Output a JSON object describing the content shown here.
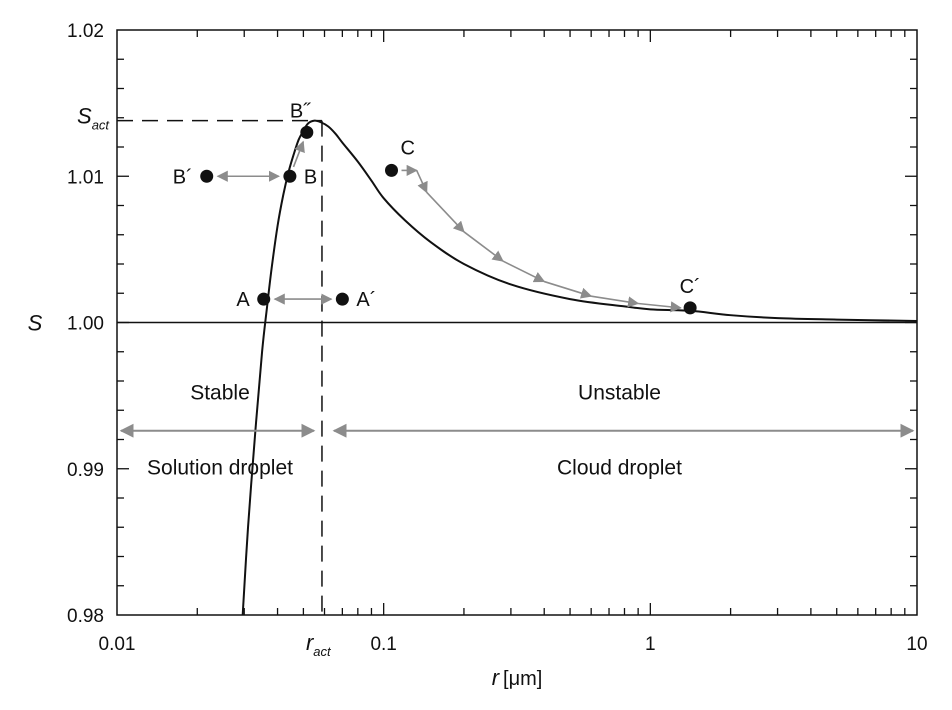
{
  "chart_data": {
    "type": "line",
    "title": "",
    "xlabel": {
      "symbol": "r",
      "unit": "[μm]"
    },
    "ylabel": "S",
    "x_scale": "log",
    "xlim": [
      0.01,
      10
    ],
    "ylim": [
      0.98,
      1.02
    ],
    "x_ticks": [
      {
        "value": 0.01,
        "label": "0.01"
      },
      {
        "value": 0.1,
        "label": "0.1"
      },
      {
        "value": 1,
        "label": "1"
      },
      {
        "value": 10,
        "label": "10"
      }
    ],
    "y_ticks": [
      {
        "value": 0.98,
        "label": "0.98"
      },
      {
        "value": 0.99,
        "label": "0.99"
      },
      {
        "value": 1.0,
        "label": "1.00"
      },
      {
        "value": 1.01,
        "label": "1.01"
      },
      {
        "value": 1.02,
        "label": "1.02"
      }
    ],
    "grid": false,
    "series": [
      {
        "name": "",
        "x": [
          0.0296,
          0.031,
          0.033,
          0.035,
          0.0365,
          0.038,
          0.04,
          0.042,
          0.044,
          0.046,
          0.048,
          0.05,
          0.052,
          0.055,
          0.058,
          0.062,
          0.066,
          0.07,
          0.08,
          0.09,
          0.1,
          0.12,
          0.15,
          0.2,
          0.3,
          0.5,
          0.8,
          1.0,
          1.41,
          2,
          3,
          5,
          10
        ],
        "y": [
          0.98,
          0.986,
          0.9925,
          0.998,
          1.001,
          1.0037,
          1.0066,
          1.0087,
          1.0103,
          1.0115,
          1.0125,
          1.0131,
          1.0136,
          1.0138,
          1.0137,
          1.0134,
          1.0129,
          1.0123,
          1.011,
          1.0097,
          1.0085,
          1.007,
          1.0055,
          1.004,
          1.0026,
          1.0016,
          1.0011,
          1.0009,
          1.0008,
          1.0005,
          1.0003,
          1.0002,
          1.0001
        ]
      }
    ],
    "reference_line": {
      "y": 1.0
    },
    "activation": {
      "x": 0.0587,
      "y": 1.0138,
      "x_label": {
        "symbol": "r",
        "sub": "act"
      },
      "y_label": {
        "symbol": "S",
        "sub": "act"
      }
    },
    "points": [
      {
        "id": "A",
        "label": "A",
        "x": 0.0355,
        "y": 1.0016,
        "label_side": "left"
      },
      {
        "id": "A_prime",
        "label": "A´",
        "x": 0.07,
        "y": 1.0016,
        "label_side": "right"
      },
      {
        "id": "B",
        "label": "B",
        "x": 0.0445,
        "y": 1.01,
        "label_side": "right"
      },
      {
        "id": "B_prime",
        "label": "B´",
        "x": 0.0217,
        "y": 1.01,
        "label_side": "left"
      },
      {
        "id": "B_dprime",
        "label": "B˝",
        "x": 0.0515,
        "y": 1.013,
        "label_side": "above"
      },
      {
        "id": "C",
        "label": "C",
        "x": 0.107,
        "y": 1.0104,
        "label_side": "above-right"
      },
      {
        "id": "C_prime",
        "label": "C´",
        "x": 1.41,
        "y": 1.001,
        "label_side": "above"
      }
    ],
    "arrows": {
      "A_to_A_prime": {
        "from": [
          0.0355,
          1.0016
        ],
        "to": [
          0.07,
          1.0016
        ],
        "both_ends": true
      },
      "B_to_B_prime": {
        "from": [
          0.0217,
          1.01
        ],
        "to": [
          0.0445,
          1.01
        ],
        "both_ends": true
      },
      "B_to_B_dprime": {
        "from": [
          0.0445,
          1.01
        ],
        "to": [
          0.0515,
          1.013
        ],
        "both_ends": false
      },
      "C_path": {
        "points": [
          [
            0.107,
            1.0104
          ],
          [
            0.133,
            1.0104
          ],
          [
            0.145,
            1.0089
          ],
          [
            0.2,
            1.0062
          ],
          [
            0.28,
            1.0042
          ],
          [
            0.4,
            1.0028
          ],
          [
            0.6,
            1.0018
          ],
          [
            0.9,
            1.0013
          ],
          [
            1.3,
            1.001
          ]
        ]
      }
    },
    "regions": [
      {
        "label": "Stable",
        "sublabel": "Solution droplet",
        "x_from": 0.01,
        "x_to": 0.0587,
        "arrow_y": 0.9926
      },
      {
        "label": "Unstable",
        "sublabel": "Cloud droplet",
        "x_from": 0.0587,
        "x_to": 10,
        "arrow_y": 0.9926
      }
    ],
    "colors": {
      "curve": "#111111",
      "points": "#111111",
      "arrows": "#8c8c8c",
      "frame": "#111111"
    }
  }
}
